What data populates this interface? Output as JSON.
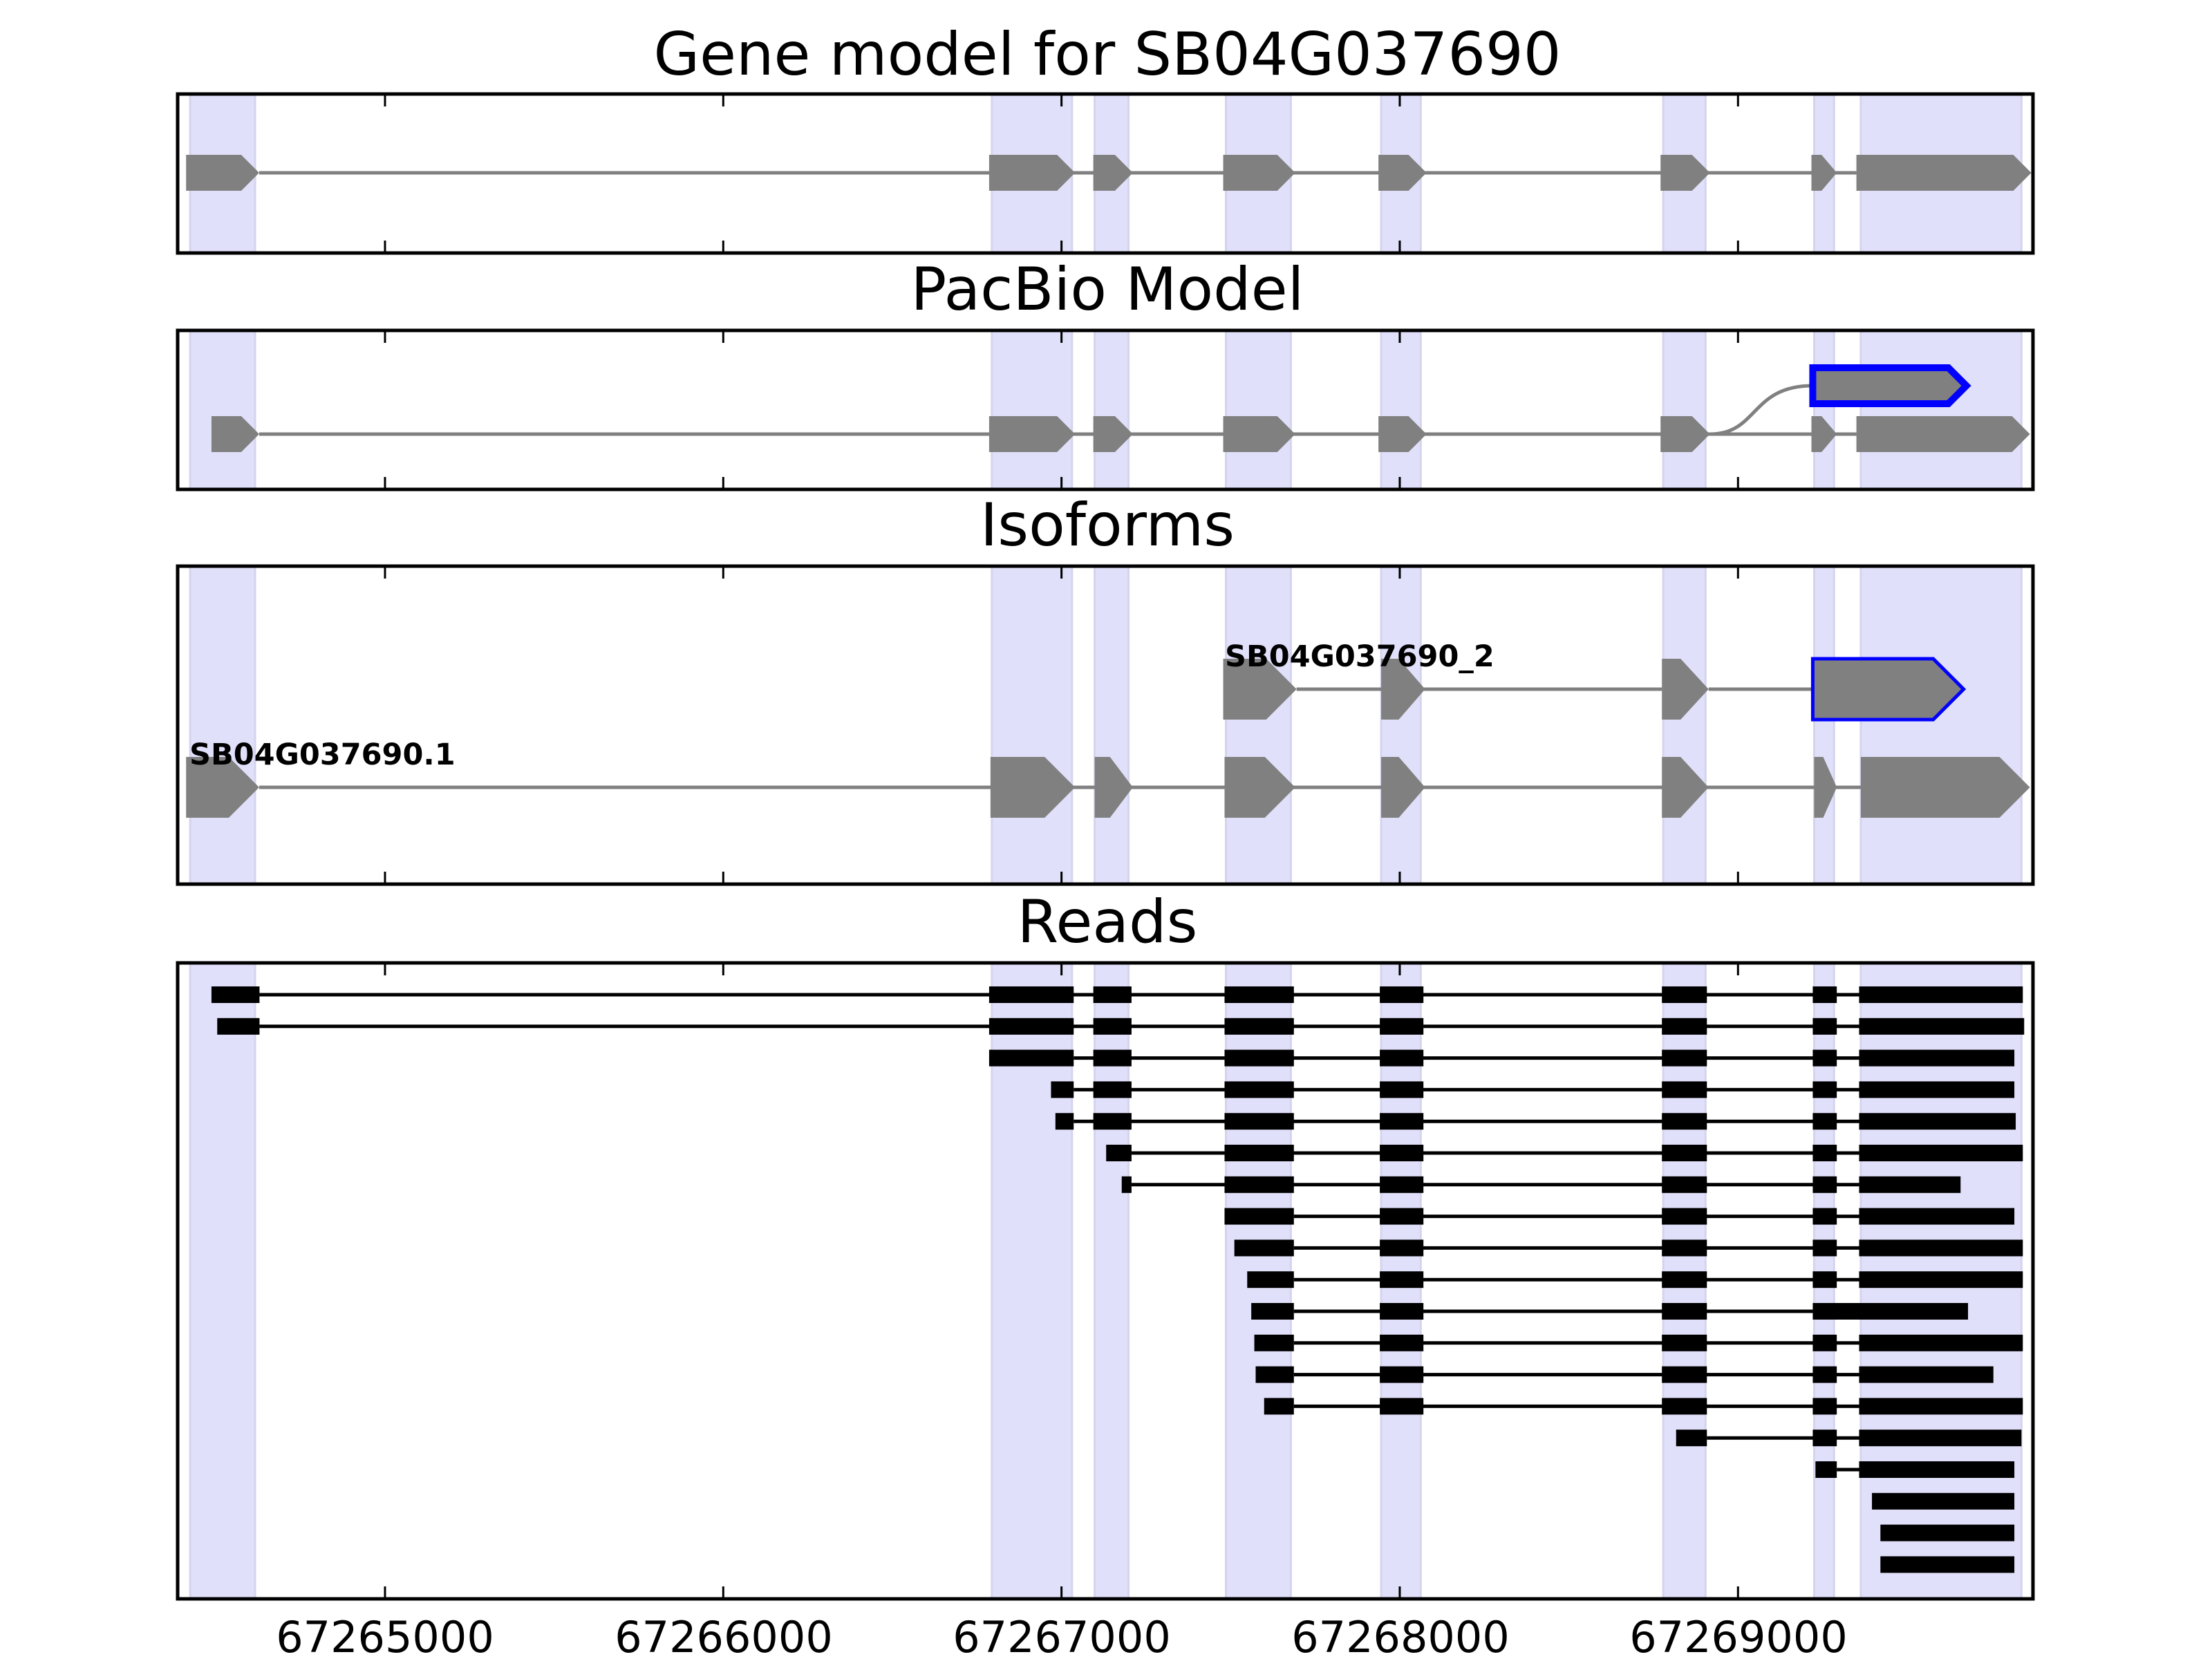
{
  "chart_data": {
    "type": "gene-track",
    "xlim": [
      67264387,
      67269872
    ],
    "x_ticks": [
      67265000,
      67266000,
      67267000,
      67268000,
      67269000
    ],
    "x_tick_labels": [
      "67265000",
      "67266000",
      "67267000",
      "67268000",
      "67269000"
    ],
    "colors": {
      "exon_fill": "#808080",
      "intron_line": "#808080",
      "highlight_edge": "#0000ff",
      "shade": "#e0e0fa",
      "read": "#000000",
      "axis": "#000000"
    },
    "shaded_regions": [
      [
        67264424,
        67264616
      ],
      [
        67266794,
        67267031
      ],
      [
        67267098,
        67267198
      ],
      [
        67267486,
        67267678
      ],
      [
        67267945,
        67268062
      ],
      [
        67268779,
        67268904
      ],
      [
        67269225,
        67269284
      ],
      [
        67269363,
        67269838
      ]
    ],
    "panels": [
      {
        "title": "Gene model for SB04G037690",
        "kind": "model",
        "tracks": [
          {
            "label": "",
            "row": 0,
            "highlight": false,
            "exons": [
              [
                67264412,
                67264628
              ],
              [
                67266786,
                67267040
              ],
              [
                67267094,
                67267211
              ],
              [
                67267478,
                67267691
              ],
              [
                67267937,
                67268079
              ],
              [
                67268771,
                67268917
              ],
              [
                67269217,
                67269292
              ],
              [
                67269350,
                67269867
              ]
            ]
          }
        ]
      },
      {
        "title": "PacBio Model",
        "kind": "model",
        "tracks": [
          {
            "label": "",
            "row": 0,
            "highlight": false,
            "exons": [
              [
                67264487,
                67264628
              ],
              [
                67266786,
                67267040
              ],
              [
                67267094,
                67267211
              ],
              [
                67267478,
                67267691
              ],
              [
                67267937,
                67268079
              ],
              [
                67268771,
                67268917
              ],
              [
                67269217,
                67269292
              ],
              [
                67269350,
                67269863
              ]
            ]
          },
          {
            "label": "",
            "row": 1,
            "highlight": true,
            "branch_from": 67268917,
            "exons": [
              [
                67269221,
                67269675
              ]
            ]
          }
        ]
      },
      {
        "title": "Isoforms",
        "kind": "model",
        "tracks": [
          {
            "label": "SB04G037690.1",
            "row": 0,
            "highlight": false,
            "exons": [
              [
                67264412,
                67264628
              ],
              [
                67266790,
                67267040
              ],
              [
                67267098,
                67267211
              ],
              [
                67267482,
                67267691
              ],
              [
                67267945,
                67268075
              ],
              [
                67268775,
                67268913
              ],
              [
                67269225,
                67269292
              ],
              [
                67269363,
                67269863
              ]
            ]
          },
          {
            "label": "SB04G037690_2",
            "row": 1,
            "highlight": false,
            "exons": [
              [
                67267478,
                67267695
              ],
              [
                67267945,
                67268075
              ],
              [
                67268775,
                67268913
              ]
            ]
          },
          {
            "label": "",
            "row": 1,
            "highlight": true,
            "join_prev": true,
            "exons": [
              [
                67269221,
                67269667
              ]
            ]
          }
        ]
      },
      {
        "title": "Reads",
        "kind": "reads",
        "reads": [
          [
            [
              67264487,
              67264629
            ],
            [
              67266786,
              67267036
            ],
            [
              67267094,
              67267207
            ],
            [
              67267482,
              67267687
            ],
            [
              67267941,
              67268070
            ],
            [
              67268775,
              67268908
            ],
            [
              67269221,
              67269292
            ],
            [
              67269358,
              67269842
            ]
          ],
          [
            [
              67264504,
              67264629
            ],
            [
              67266786,
              67267036
            ],
            [
              67267094,
              67267207
            ],
            [
              67267482,
              67267687
            ],
            [
              67267941,
              67268070
            ],
            [
              67268775,
              67268908
            ],
            [
              67269221,
              67269292
            ],
            [
              67269358,
              67269846
            ]
          ],
          [
            [
              67266786,
              67267036
            ],
            [
              67267094,
              67267207
            ],
            [
              67267482,
              67267687
            ],
            [
              67267941,
              67268070
            ],
            [
              67268775,
              67268908
            ],
            [
              67269221,
              67269292
            ],
            [
              67269358,
              67269817
            ]
          ],
          [
            [
              67266969,
              67267036
            ],
            [
              67267094,
              67267207
            ],
            [
              67267482,
              67267687
            ],
            [
              67267941,
              67268070
            ],
            [
              67268775,
              67268908
            ],
            [
              67269221,
              67269292
            ],
            [
              67269358,
              67269817
            ]
          ],
          [
            [
              67266982,
              67267036
            ],
            [
              67267094,
              67267207
            ],
            [
              67267482,
              67267687
            ],
            [
              67267941,
              67268070
            ],
            [
              67268775,
              67268908
            ],
            [
              67269221,
              67269292
            ],
            [
              67269358,
              67269821
            ]
          ],
          [
            [
              67267132,
              67267207
            ],
            [
              67267482,
              67267687
            ],
            [
              67267941,
              67268070
            ],
            [
              67268775,
              67268908
            ],
            [
              67269221,
              67269292
            ],
            [
              67269358,
              67269842
            ]
          ],
          [
            [
              67267178,
              67267207
            ],
            [
              67267482,
              67267687
            ],
            [
              67267941,
              67268070
            ],
            [
              67268775,
              67268908
            ],
            [
              67269221,
              67269292
            ],
            [
              67269358,
              67269658
            ]
          ],
          [
            [
              67267482,
              67267687
            ],
            [
              67267941,
              67268070
            ],
            [
              67268775,
              67268908
            ],
            [
              67269221,
              67269292
            ],
            [
              67269358,
              67269817
            ]
          ],
          [
            [
              67267511,
              67267687
            ],
            [
              67267941,
              67268070
            ],
            [
              67268775,
              67268908
            ],
            [
              67269221,
              67269292
            ],
            [
              67269358,
              67269842
            ]
          ],
          [
            [
              67267549,
              67267687
            ],
            [
              67267941,
              67268070
            ],
            [
              67268775,
              67268908
            ],
            [
              67269221,
              67269292
            ],
            [
              67269358,
              67269842
            ]
          ],
          [
            [
              67267561,
              67267687
            ],
            [
              67267941,
              67268070
            ],
            [
              67268775,
              67268908
            ],
            [
              67269221,
              67269680
            ]
          ],
          [
            [
              67267570,
              67267687
            ],
            [
              67267941,
              67268070
            ],
            [
              67268775,
              67268908
            ],
            [
              67269221,
              67269292
            ],
            [
              67269358,
              67269842
            ]
          ],
          [
            [
              67267574,
              67267687
            ],
            [
              67267941,
              67268070
            ],
            [
              67268775,
              67268908
            ],
            [
              67269221,
              67269292
            ],
            [
              67269358,
              67269755
            ]
          ],
          [
            [
              67267599,
              67267687
            ],
            [
              67267941,
              67268070
            ],
            [
              67268775,
              67268908
            ],
            [
              67269221,
              67269292
            ],
            [
              67269358,
              67269842
            ]
          ],
          [
            [
              67268817,
              67268908
            ],
            [
              67269221,
              67269292
            ],
            [
              67269358,
              67269838
            ]
          ],
          [
            [
              67269229,
              67269292
            ],
            [
              67269358,
              67269817
            ]
          ],
          [
            [
              67269396,
              67269817
            ]
          ],
          [
            [
              67269421,
              67269817
            ]
          ],
          [
            [
              67269421,
              67269817
            ]
          ]
        ]
      }
    ]
  }
}
